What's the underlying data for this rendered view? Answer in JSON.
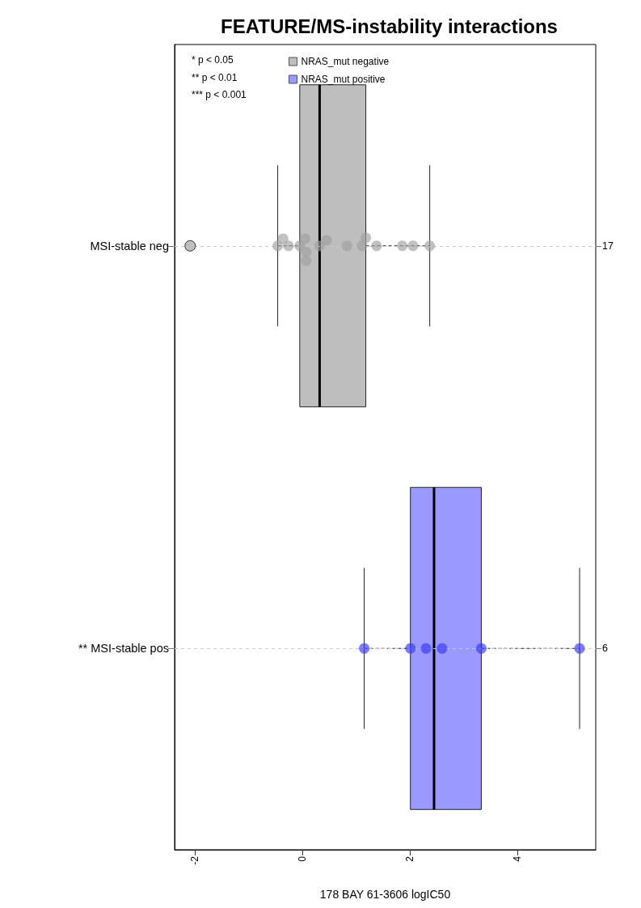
{
  "chart_data": {
    "type": "box",
    "title": "FEATURE/MS-instability interactions",
    "xlabel": "178 BAY 61-3606 logIC50",
    "orientation": "horizontal",
    "categories": [
      "MSI-stable neg",
      "** MSI-stable pos"
    ],
    "y2_categories": [
      "17",
      "6"
    ],
    "xlim": [
      -2.38,
      5.46
    ],
    "xticks": [
      -2,
      0,
      2,
      4
    ],
    "grid": "y",
    "legend": "top left",
    "series": [
      {
        "name": "NRAS_mut negative",
        "color": "#bebebe",
        "boxes": [
          {
            "low": -0.46,
            "q1": -0.05,
            "median": 0.32,
            "q3": 1.18,
            "high": 2.37,
            "outliers": [
              -2.09
            ]
          },
          null
        ]
      },
      {
        "name": "NRAS_mut positive",
        "color": "#9999ff",
        "boxes": [
          null,
          {
            "low": 1.15,
            "q1": 2.01,
            "median": 2.45,
            "q3": 3.33,
            "high": 5.16
          }
        ]
      },
      {
        "type": "scatter",
        "color": "#a0a0a0",
        "x": [
          "MSI-stable neg",
          "MSI-stable neg",
          "MSI-stable neg",
          "MSI-stable neg",
          "MSI-stable neg",
          "MSI-stable neg",
          "MSI-stable neg",
          "MSI-stable neg",
          "MSI-stable neg",
          "MSI-stable neg",
          "MSI-stable neg",
          "MSI-stable neg",
          "MSI-stable neg",
          "MSI-stable neg",
          "MSI-stable neg",
          "MSI-stable neg"
        ],
        "values": [
          -0.46,
          -0.36,
          -0.26,
          -0.05,
          0.05,
          0.07,
          0.07,
          0.32,
          0.45,
          0.83,
          1.11,
          1.18,
          1.38,
          1.86,
          2.06,
          2.37
        ]
      },
      {
        "type": "scatter",
        "color": "#3535ff",
        "x": [
          "** MSI-stable pos",
          "** MSI-stable pos",
          "** MSI-stable pos",
          "** MSI-stable pos",
          "** MSI-stable pos",
          "** MSI-stable pos"
        ],
        "values": [
          1.15,
          2.01,
          2.3,
          2.6,
          3.33,
          5.16
        ]
      }
    ],
    "annotations": [
      "* p < 0.05",
      "** p < 0.01",
      "*** p < 0.001"
    ]
  }
}
